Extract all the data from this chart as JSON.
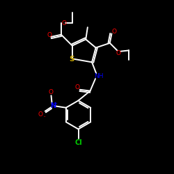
{
  "bg_color": "#000000",
  "line_color": "#ffffff",
  "S_color": "#ccaa00",
  "N_color": "#0000ff",
  "O_color": "#ff0000",
  "Cl_color": "#00cc00",
  "NH_color": "#0000ff",
  "line_width": 1.4,
  "figsize": [
    2.5,
    2.5
  ],
  "dpi": 100,
  "xlim": [
    0,
    10
  ],
  "ylim": [
    0,
    10
  ]
}
